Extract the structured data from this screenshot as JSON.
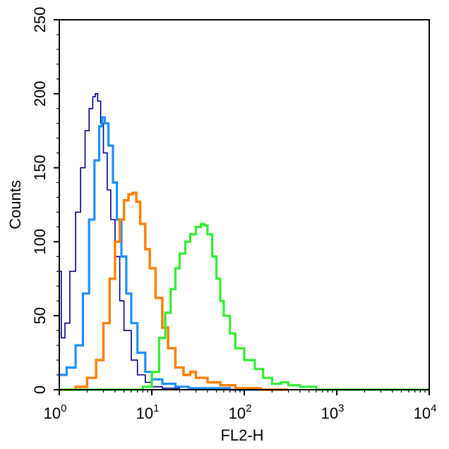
{
  "chart_data": {
    "type": "line",
    "xlabel": "FL2-H",
    "ylabel": "Counts",
    "xscale": "log",
    "xlim": [
      1,
      10000
    ],
    "ylim": [
      0,
      250
    ],
    "x_ticks": [
      {
        "value": 1,
        "base": "10",
        "exp": "0"
      },
      {
        "value": 10,
        "base": "10",
        "exp": "1"
      },
      {
        "value": 100,
        "base": "10",
        "exp": "2"
      },
      {
        "value": 1000,
        "base": "10",
        "exp": "3"
      },
      {
        "value": 10000,
        "base": "10",
        "exp": "4"
      }
    ],
    "y_ticks": [
      "0",
      "50",
      "100",
      "150",
      "200",
      "250"
    ],
    "grid": false,
    "legend": "none",
    "series": [
      {
        "color": "#00008b",
        "x": [
          1.0,
          1.05,
          1.15,
          1.3,
          1.5,
          1.7,
          1.9,
          2.1,
          2.3,
          2.45,
          2.6,
          2.8,
          3.0,
          3.3,
          3.6,
          4.0,
          4.5,
          5.0,
          6.0,
          7.0,
          8.5,
          10.0,
          13.0,
          20.0
        ],
        "y": [
          80,
          35,
          45,
          80,
          120,
          150,
          175,
          190,
          198,
          200,
          195,
          180,
          160,
          135,
          115,
          90,
          60,
          40,
          20,
          10,
          5,
          2,
          1,
          0
        ]
      },
      {
        "color": "#1e90ff",
        "x": [
          1.0,
          1.2,
          1.5,
          1.8,
          2.1,
          2.4,
          2.7,
          2.9,
          3.1,
          3.4,
          3.8,
          4.2,
          4.7,
          5.3,
          6.0,
          7.0,
          8.5,
          10.0,
          13.0,
          18.0,
          25.0,
          40.0,
          70.0,
          120.0,
          200.0
        ],
        "y": [
          10,
          15,
          30,
          65,
          115,
          155,
          178,
          184,
          180,
          165,
          140,
          115,
          90,
          65,
          45,
          25,
          12,
          7,
          4,
          2,
          1,
          1,
          0,
          0,
          0
        ]
      },
      {
        "color": "#ff7f00",
        "x": [
          1.0,
          1.5,
          2.0,
          2.5,
          3.0,
          3.5,
          4.0,
          4.5,
          5.0,
          5.6,
          6.2,
          6.8,
          7.5,
          8.5,
          9.5,
          11.0,
          13.0,
          15.0,
          18.0,
          22.0,
          26.0,
          30.0,
          40.0,
          55.0,
          80.0,
          150.0,
          300.0
        ],
        "y": [
          0,
          2,
          8,
          20,
          45,
          75,
          100,
          115,
          128,
          132,
          133,
          127,
          112,
          95,
          82,
          62,
          42,
          28,
          15,
          10,
          12,
          8,
          5,
          3,
          1,
          0,
          0
        ]
      },
      {
        "color": "#33ee33",
        "x": [
          1.0,
          5.0,
          8.0,
          10.0,
          12.0,
          14.0,
          16.0,
          18.0,
          20.0,
          23.0,
          26.0,
          30.0,
          34.0,
          37.0,
          40.0,
          45.0,
          50.0,
          55.0,
          60.0,
          70.0,
          80.0,
          100.0,
          130.0,
          160.0,
          200.0,
          250.0,
          300.0,
          400.0,
          600.0,
          10000.0
        ],
        "y": [
          0,
          0,
          2,
          12,
          35,
          52,
          68,
          82,
          92,
          100,
          105,
          110,
          112,
          111,
          105,
          90,
          75,
          60,
          50,
          38,
          28,
          20,
          14,
          8,
          4,
          5,
          3,
          2,
          0,
          0
        ]
      }
    ]
  }
}
